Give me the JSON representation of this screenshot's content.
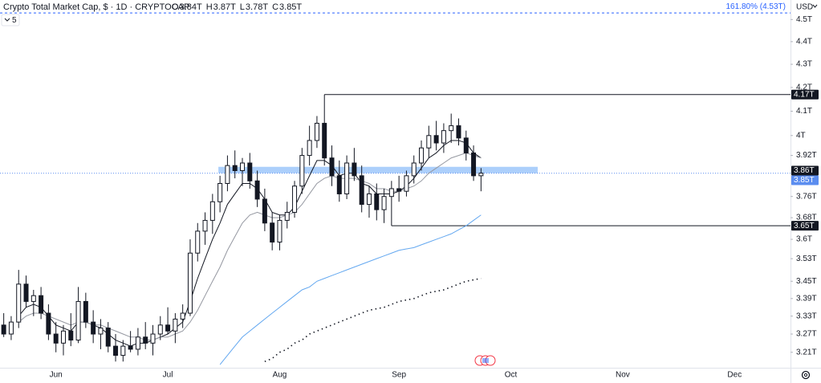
{
  "chart_data": {
    "type": "candlestick",
    "title": "Crypto Total Market Cap, $ · 1D · CRYPTOCAP",
    "ohlc_legend": [
      {
        "key": "O",
        "text": "3.84T"
      },
      {
        "key": "H",
        "text": "3.87T"
      },
      {
        "key": "L",
        "text": "3.78T"
      },
      {
        "key": "C",
        "text": "3.85T"
      }
    ],
    "indicator_count": "5",
    "currency": "USD",
    "log_scale": true,
    "ylim": [
      3.16,
      4.59
    ],
    "yticks": [
      {
        "value": 4.5,
        "label": "4.5T"
      },
      {
        "value": 4.4,
        "label": "4.4T"
      },
      {
        "value": 4.3,
        "label": "4.3T"
      },
      {
        "value": 4.2,
        "label": "4.2T"
      },
      {
        "value": 4.1,
        "label": "4.1T"
      },
      {
        "value": 4,
        "label": "4T"
      },
      {
        "value": 3.92,
        "label": "3.92T"
      },
      {
        "value": 3.76,
        "label": "3.76T"
      },
      {
        "value": 3.68,
        "label": "3.68T"
      },
      {
        "value": 3.6,
        "label": "3.6T"
      },
      {
        "value": 3.53,
        "label": "3.53T"
      },
      {
        "value": 3.45,
        "label": "3.45T"
      },
      {
        "value": 3.39,
        "label": "3.39T"
      },
      {
        "value": 3.33,
        "label": "3.33T"
      },
      {
        "value": 3.27,
        "label": "3.27T"
      },
      {
        "value": 3.21,
        "label": "3.21T"
      }
    ],
    "fib_level": {
      "value": 4.53,
      "label": "161.80% (4.53T)",
      "color": "#2962ff"
    },
    "zone": [
      3.85,
      3.875
    ],
    "levels": [
      4.17,
      3.65
    ],
    "last_price": 3.85,
    "price_tags": [
      {
        "value": 4.17,
        "label": "4.17T",
        "color": "#131722"
      },
      {
        "value": 3.86,
        "label": "3.86T",
        "color": "#131722"
      },
      {
        "value": 3.85,
        "label": "3.85T",
        "color": "#5b8def"
      },
      {
        "value": 3.65,
        "label": "3.65T",
        "color": "#131722"
      }
    ],
    "categories": [
      null,
      null,
      null,
      null,
      null,
      null,
      null,
      "Jun",
      null,
      null,
      null,
      null,
      null,
      null,
      null,
      null,
      null,
      null,
      null,
      null,
      null,
      null,
      "Jul",
      null,
      null,
      null,
      null,
      null,
      null,
      null,
      null,
      null,
      null,
      null,
      null,
      null,
      null,
      "Aug",
      null,
      null,
      null,
      null,
      null,
      null,
      null,
      null,
      null,
      null,
      null,
      null,
      null,
      null,
      null,
      "Sep",
      null,
      null,
      null,
      null,
      null,
      null,
      null,
      null,
      null,
      null,
      null,
      null,
      null,
      null,
      "Oct",
      null,
      null,
      null,
      null,
      null,
      null,
      null,
      null,
      null,
      null,
      null,
      null,
      null,
      null,
      "Nov",
      null,
      null,
      null,
      null,
      null,
      null,
      null,
      null,
      null,
      null,
      null,
      null,
      null,
      null,
      "Dec",
      null,
      null,
      null,
      null,
      null,
      null,
      null
    ],
    "open": [
      3.3,
      3.27,
      3.31,
      3.44,
      3.38,
      3.4,
      3.34,
      3.27,
      3.24,
      3.28,
      3.25,
      3.38,
      3.31,
      3.27,
      3.29,
      3.23,
      3.2,
      3.23,
      3.22,
      3.26,
      3.24,
      3.27,
      3.3,
      3.28,
      3.32,
      3.34,
      3.55,
      3.63,
      3.67,
      3.74,
      3.81,
      3.88,
      3.86,
      3.89,
      3.82,
      3.75,
      3.66,
      3.59,
      3.67,
      3.7,
      3.8,
      3.92,
      3.98,
      4.05,
      3.91,
      3.84,
      3.77,
      3.89,
      3.84,
      3.73,
      3.77,
      3.71,
      3.76,
      3.79,
      3.78,
      3.84,
      3.89,
      3.95,
      4.0,
      3.97,
      4.02,
      4.04,
      3.99,
      3.93,
      3.84,
      null,
      null,
      null,
      null,
      null,
      null,
      null,
      null,
      null,
      null,
      null,
      null,
      null,
      null,
      null,
      null,
      null,
      null,
      null,
      null,
      null,
      null,
      null,
      null,
      null,
      null,
      null,
      null,
      null,
      null,
      null,
      null,
      null,
      null,
      null,
      null,
      null,
      null,
      null,
      null,
      null
    ],
    "high": [
      3.34,
      3.33,
      3.49,
      3.47,
      3.42,
      3.43,
      3.37,
      3.31,
      3.3,
      3.34,
      3.43,
      3.41,
      3.35,
      3.32,
      3.31,
      3.27,
      3.25,
      3.28,
      3.29,
      3.31,
      3.3,
      3.33,
      3.36,
      3.34,
      3.37,
      3.6,
      3.66,
      3.7,
      3.77,
      3.84,
      3.92,
      3.94,
      3.91,
      3.93,
      3.86,
      3.79,
      3.7,
      3.69,
      3.74,
      3.82,
      3.95,
      4.04,
      4.08,
      4.17,
      3.96,
      3.9,
      3.92,
      3.95,
      3.88,
      3.8,
      3.81,
      3.79,
      3.82,
      3.84,
      3.86,
      3.92,
      3.98,
      4.04,
      4.06,
      4.05,
      4.09,
      4.07,
      4.02,
      3.96,
      3.87,
      null,
      null,
      null,
      null,
      null,
      null,
      null,
      null,
      null,
      null,
      null,
      null,
      null,
      null,
      null,
      null,
      null,
      null,
      null,
      null,
      null,
      null,
      null,
      null,
      null,
      null,
      null,
      null,
      null,
      null,
      null,
      null,
      null,
      null,
      null,
      null,
      null,
      null,
      null,
      null,
      null
    ],
    "low": [
      3.26,
      3.25,
      3.29,
      3.36,
      3.33,
      3.32,
      3.25,
      3.21,
      3.2,
      3.23,
      3.24,
      3.29,
      3.24,
      3.22,
      3.21,
      3.18,
      3.18,
      3.21,
      3.2,
      3.22,
      3.2,
      3.25,
      3.27,
      3.24,
      3.29,
      3.33,
      3.52,
      3.58,
      3.62,
      3.7,
      3.78,
      3.83,
      3.8,
      3.79,
      3.72,
      3.63,
      3.56,
      3.56,
      3.64,
      3.68,
      3.77,
      3.88,
      3.95,
      3.88,
      3.8,
      3.74,
      3.75,
      3.82,
      3.7,
      3.68,
      3.67,
      3.66,
      3.65,
      3.74,
      3.76,
      3.81,
      3.86,
      3.91,
      3.94,
      3.93,
      3.97,
      3.96,
      3.9,
      3.82,
      3.78,
      null,
      null,
      null,
      null,
      null,
      null,
      null,
      null,
      null,
      null,
      null,
      null,
      null,
      null,
      null,
      null,
      null,
      null,
      null,
      null,
      null,
      null,
      null,
      null,
      null,
      null,
      null,
      null,
      null,
      null,
      null,
      null,
      null,
      null,
      null,
      null,
      null,
      null,
      null,
      null,
      null
    ],
    "close": [
      3.27,
      3.31,
      3.44,
      3.38,
      3.4,
      3.34,
      3.27,
      3.24,
      3.28,
      3.25,
      3.38,
      3.31,
      3.27,
      3.29,
      3.23,
      3.2,
      3.23,
      3.22,
      3.26,
      3.24,
      3.27,
      3.3,
      3.28,
      3.32,
      3.34,
      3.55,
      3.63,
      3.67,
      3.74,
      3.81,
      3.88,
      3.86,
      3.89,
      3.82,
      3.75,
      3.66,
      3.59,
      3.67,
      3.7,
      3.8,
      3.92,
      3.98,
      4.05,
      3.91,
      3.84,
      3.77,
      3.89,
      3.84,
      3.73,
      3.77,
      3.71,
      3.76,
      3.79,
      3.78,
      3.84,
      3.89,
      3.95,
      4.0,
      3.97,
      4.02,
      4.04,
      3.99,
      3.93,
      3.84,
      3.85,
      null,
      null,
      null,
      null,
      null,
      null,
      null,
      null,
      null,
      null,
      null,
      null,
      null,
      null,
      null,
      null,
      null,
      null,
      null,
      null,
      null,
      null,
      null,
      null,
      null,
      null,
      null,
      null,
      null,
      null,
      null,
      null,
      null,
      null,
      null,
      null,
      null,
      null,
      null,
      null,
      null
    ],
    "up_color": "#ffffff",
    "down_color": "#131722",
    "series": [
      {
        "color": "#131722",
        "dash": false,
        "values": [
          null,
          null,
          3.33,
          3.36,
          3.37,
          3.36,
          3.33,
          3.3,
          3.29,
          3.28,
          3.31,
          3.31,
          3.3,
          3.29,
          3.27,
          3.25,
          3.24,
          3.23,
          3.24,
          3.24,
          3.25,
          3.26,
          3.27,
          3.29,
          3.31,
          3.38,
          3.46,
          3.53,
          3.6,
          3.66,
          3.73,
          3.77,
          3.81,
          3.81,
          3.79,
          3.75,
          3.7,
          3.69,
          3.69,
          3.72,
          3.78,
          3.84,
          3.9,
          3.9,
          3.88,
          3.84,
          3.85,
          3.85,
          3.81,
          3.8,
          3.77,
          3.77,
          3.77,
          3.78,
          3.8,
          3.83,
          3.87,
          3.91,
          3.93,
          3.96,
          3.98,
          3.98,
          3.97,
          3.93,
          3.91,
          null,
          null,
          null,
          null,
          null,
          null,
          null,
          null,
          null,
          null,
          null,
          null,
          null,
          null,
          null,
          null,
          null,
          null,
          null,
          null,
          null,
          null,
          null,
          null,
          null,
          null,
          null,
          null,
          null,
          null,
          null,
          null,
          null,
          null,
          null,
          null,
          null,
          null,
          null,
          null,
          null
        ]
      },
      {
        "color": "#9598a1",
        "dash": false,
        "values": [
          null,
          null,
          3.31,
          3.33,
          3.34,
          3.34,
          3.33,
          3.32,
          3.31,
          3.3,
          3.31,
          3.31,
          3.3,
          3.3,
          3.29,
          3.28,
          3.27,
          3.26,
          3.26,
          3.25,
          3.25,
          3.26,
          3.26,
          3.27,
          3.28,
          3.31,
          3.35,
          3.4,
          3.45,
          3.5,
          3.56,
          3.61,
          3.66,
          3.69,
          3.7,
          3.69,
          3.68,
          3.68,
          3.69,
          3.7,
          3.73,
          3.77,
          3.81,
          3.83,
          3.84,
          3.83,
          3.83,
          3.83,
          3.82,
          3.81,
          3.79,
          3.79,
          3.78,
          3.78,
          3.79,
          3.8,
          3.82,
          3.85,
          3.87,
          3.89,
          3.91,
          3.92,
          3.93,
          3.92,
          3.91,
          null,
          null,
          null,
          null,
          null,
          null,
          null,
          null,
          null,
          null,
          null,
          null,
          null,
          null,
          null,
          null,
          null,
          null,
          null,
          null,
          null,
          null,
          null,
          null,
          null,
          null,
          null,
          null,
          null,
          null,
          null,
          null,
          null,
          null,
          null,
          null,
          null,
          null,
          null,
          null,
          null
        ]
      },
      {
        "color": "#64a8f0",
        "dash": false,
        "values": [
          null,
          null,
          null,
          null,
          null,
          null,
          null,
          null,
          null,
          null,
          null,
          null,
          null,
          null,
          null,
          null,
          null,
          null,
          null,
          null,
          null,
          null,
          null,
          null,
          null,
          null,
          null,
          null,
          null,
          3.17,
          3.2,
          3.23,
          3.26,
          3.28,
          3.3,
          3.32,
          3.34,
          3.36,
          3.38,
          3.4,
          3.42,
          3.43,
          3.45,
          3.46,
          3.47,
          3.48,
          3.49,
          3.5,
          3.51,
          3.52,
          3.53,
          3.54,
          3.55,
          3.56,
          3.565,
          3.57,
          3.58,
          3.59,
          3.6,
          3.61,
          3.62,
          3.635,
          3.65,
          3.67,
          3.69,
          null,
          null,
          null,
          null,
          null,
          null,
          null,
          null,
          null,
          null,
          null,
          null,
          null,
          null,
          null,
          null,
          null,
          null,
          null,
          null,
          null,
          null,
          null,
          null,
          null,
          null,
          null,
          null,
          null,
          null,
          null,
          null,
          null,
          null,
          null,
          null,
          null,
          null,
          null,
          null,
          null
        ]
      },
      {
        "color": "#131722",
        "dash": true,
        "values": [
          null,
          null,
          null,
          null,
          null,
          null,
          null,
          null,
          null,
          null,
          null,
          null,
          null,
          null,
          null,
          null,
          null,
          null,
          null,
          null,
          null,
          null,
          null,
          null,
          null,
          null,
          null,
          null,
          null,
          null,
          null,
          null,
          null,
          null,
          null,
          3.18,
          3.19,
          3.21,
          3.22,
          3.24,
          3.25,
          3.27,
          3.28,
          3.29,
          3.3,
          3.31,
          3.32,
          3.33,
          3.34,
          3.35,
          3.355,
          3.36,
          3.37,
          3.38,
          3.385,
          3.39,
          3.4,
          3.41,
          3.415,
          3.42,
          3.43,
          3.44,
          3.45,
          3.455,
          3.46,
          null,
          null,
          null,
          null,
          null,
          null,
          null,
          null,
          null,
          null,
          null,
          null,
          null,
          null,
          null,
          null,
          null,
          null,
          null,
          null,
          null,
          null,
          null,
          null,
          null,
          null,
          null,
          null,
          null,
          null,
          null,
          null,
          null,
          null,
          null,
          null,
          null,
          null,
          null,
          null,
          null
        ]
      }
    ]
  }
}
